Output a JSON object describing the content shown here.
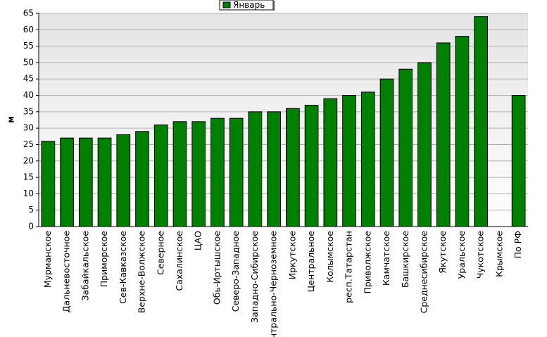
{
  "chart_data": {
    "type": "bar",
    "y_label": "м",
    "categories": [
      "Мурманское",
      "Дальневосточное",
      "Забайкальское",
      "Приморское",
      "Сев-Кавказское",
      "Верхне-Волжское",
      "Северное",
      "Сахалинское",
      "ЦАО",
      "Обь-Иртышское",
      "Северо-Западное",
      "Западно-Сибирское",
      "Центрально-Черноземное",
      "Иркутское",
      "Центральное",
      "Колымское",
      "респ.Татарстан",
      "Приволжское",
      "Камчатское",
      "Башкирское",
      "Среднесибирское",
      "Якутское",
      "Уральское",
      "Чукотское",
      "Крымское",
      "По РФ"
    ],
    "series": [
      {
        "name": "Январь",
        "color": "#008000",
        "values": [
          26,
          27,
          27,
          27,
          28,
          29,
          31,
          32,
          32,
          33,
          33,
          35,
          35,
          36,
          37,
          39,
          40,
          41,
          45,
          48,
          50,
          56,
          58,
          64,
          null,
          40
        ]
      }
    ],
    "ylim": [
      0,
      65
    ],
    "yticks": [
      0,
      5,
      10,
      15,
      20,
      25,
      30,
      35,
      40,
      45,
      50,
      55,
      60,
      65
    ],
    "grid": true,
    "legend": "top"
  }
}
